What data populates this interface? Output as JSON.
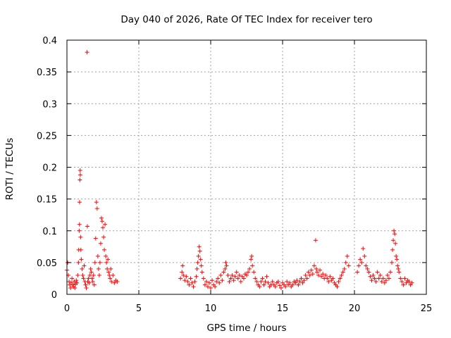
{
  "chart_data": {
    "type": "scatter",
    "title": "Day 040 of 2026, Rate Of TEC Index for receiver tero",
    "xlabel": "GPS time / hours",
    "ylabel": "ROTI / TECUs",
    "xlim": [
      0,
      25
    ],
    "ylim": [
      0,
      0.4
    ],
    "xticks": [
      0,
      5,
      10,
      15,
      20,
      25
    ],
    "xtick_labels": [
      "0",
      "5",
      "10",
      "15",
      "20",
      "25"
    ],
    "yticks": [
      0,
      0.05,
      0.1,
      0.15,
      0.2,
      0.25,
      0.3,
      0.35,
      0.4
    ],
    "ytick_labels": [
      "0",
      "0.05",
      "0.1",
      "0.15",
      "0.2",
      "0.25",
      "0.3",
      "0.35",
      "0.4"
    ],
    "grid": true,
    "marker": "+",
    "color": "#ff0000",
    "series": [
      {
        "name": "ROTI",
        "points": [
          [
            0.0,
            0.038
          ],
          [
            0.05,
            0.05
          ],
          [
            0.1,
            0.03
          ],
          [
            0.15,
            0.02
          ],
          [
            0.2,
            0.015
          ],
          [
            0.25,
            0.01
          ],
          [
            0.3,
            0.018
          ],
          [
            0.35,
            0.025
          ],
          [
            0.4,
            0.015
          ],
          [
            0.45,
            0.012
          ],
          [
            0.5,
            0.02
          ],
          [
            0.55,
            0.01
          ],
          [
            0.6,
            0.016
          ],
          [
            0.65,
            0.022
          ],
          [
            0.7,
            0.018
          ],
          [
            0.75,
            0.03
          ],
          [
            0.8,
            0.05
          ],
          [
            0.82,
            0.07
          ],
          [
            0.85,
            0.1
          ],
          [
            0.87,
            0.11
          ],
          [
            0.88,
            0.145
          ],
          [
            0.9,
            0.18
          ],
          [
            0.92,
            0.195
          ],
          [
            0.93,
            0.188
          ],
          [
            0.95,
            0.09
          ],
          [
            0.97,
            0.07
          ],
          [
            1.0,
            0.055
          ],
          [
            1.05,
            0.04
          ],
          [
            1.1,
            0.03
          ],
          [
            1.15,
            0.025
          ],
          [
            1.2,
            0.045
          ],
          [
            1.25,
            0.02
          ],
          [
            1.3,
            0.015
          ],
          [
            1.35,
            0.01
          ],
          [
            1.4,
            0.381
          ],
          [
            1.42,
            0.107
          ],
          [
            1.45,
            0.02
          ],
          [
            1.5,
            0.025
          ],
          [
            1.55,
            0.018
          ],
          [
            1.6,
            0.03
          ],
          [
            1.65,
            0.04
          ],
          [
            1.7,
            0.035
          ],
          [
            1.75,
            0.025
          ],
          [
            1.8,
            0.02
          ],
          [
            1.85,
            0.03
          ],
          [
            1.9,
            0.015
          ],
          [
            1.95,
            0.05
          ],
          [
            2.0,
            0.088
          ],
          [
            2.05,
            0.145
          ],
          [
            2.1,
            0.135
          ],
          [
            2.15,
            0.06
          ],
          [
            2.2,
            0.04
          ],
          [
            2.25,
            0.03
          ],
          [
            2.3,
            0.05
          ],
          [
            2.35,
            0.08
          ],
          [
            2.4,
            0.12
          ],
          [
            2.45,
            0.115
          ],
          [
            2.5,
            0.105
          ],
          [
            2.55,
            0.09
          ],
          [
            2.6,
            0.07
          ],
          [
            2.65,
            0.11
          ],
          [
            2.7,
            0.06
          ],
          [
            2.75,
            0.05
          ],
          [
            2.8,
            0.04
          ],
          [
            2.85,
            0.055
          ],
          [
            2.9,
            0.035
          ],
          [
            2.95,
            0.03
          ],
          [
            3.0,
            0.025
          ],
          [
            3.05,
            0.04
          ],
          [
            3.1,
            0.02
          ],
          [
            3.2,
            0.03
          ],
          [
            3.3,
            0.018
          ],
          [
            3.4,
            0.022
          ],
          [
            3.5,
            0.02
          ],
          [
            7.9,
            0.025
          ],
          [
            8.0,
            0.035
          ],
          [
            8.05,
            0.045
          ],
          [
            8.1,
            0.03
          ],
          [
            8.2,
            0.022
          ],
          [
            8.3,
            0.028
          ],
          [
            8.4,
            0.02
          ],
          [
            8.5,
            0.015
          ],
          [
            8.6,
            0.025
          ],
          [
            8.7,
            0.018
          ],
          [
            8.8,
            0.012
          ],
          [
            8.9,
            0.02
          ],
          [
            9.0,
            0.028
          ],
          [
            9.05,
            0.04
          ],
          [
            9.1,
            0.05
          ],
          [
            9.15,
            0.06
          ],
          [
            9.2,
            0.075
          ],
          [
            9.25,
            0.068
          ],
          [
            9.3,
            0.055
          ],
          [
            9.35,
            0.045
          ],
          [
            9.4,
            0.035
          ],
          [
            9.5,
            0.025
          ],
          [
            9.6,
            0.015
          ],
          [
            9.7,
            0.02
          ],
          [
            9.8,
            0.012
          ],
          [
            9.9,
            0.018
          ],
          [
            10.0,
            0.01
          ],
          [
            10.1,
            0.022
          ],
          [
            10.2,
            0.015
          ],
          [
            10.3,
            0.012
          ],
          [
            10.4,
            0.02
          ],
          [
            10.5,
            0.025
          ],
          [
            10.6,
            0.018
          ],
          [
            10.7,
            0.03
          ],
          [
            10.8,
            0.022
          ],
          [
            10.9,
            0.035
          ],
          [
            11.0,
            0.04
          ],
          [
            11.05,
            0.05
          ],
          [
            11.1,
            0.045
          ],
          [
            11.2,
            0.03
          ],
          [
            11.3,
            0.02
          ],
          [
            11.4,
            0.025
          ],
          [
            11.5,
            0.03
          ],
          [
            11.6,
            0.022
          ],
          [
            11.7,
            0.028
          ],
          [
            11.8,
            0.035
          ],
          [
            11.9,
            0.025
          ],
          [
            12.0,
            0.03
          ],
          [
            12.1,
            0.02
          ],
          [
            12.2,
            0.028
          ],
          [
            12.3,
            0.025
          ],
          [
            12.4,
            0.032
          ],
          [
            12.5,
            0.03
          ],
          [
            12.6,
            0.035
          ],
          [
            12.7,
            0.04
          ],
          [
            12.8,
            0.055
          ],
          [
            12.85,
            0.06
          ],
          [
            12.9,
            0.045
          ],
          [
            13.0,
            0.035
          ],
          [
            13.1,
            0.025
          ],
          [
            13.2,
            0.02
          ],
          [
            13.3,
            0.015
          ],
          [
            13.4,
            0.012
          ],
          [
            13.5,
            0.02
          ],
          [
            13.6,
            0.025
          ],
          [
            13.7,
            0.015
          ],
          [
            13.8,
            0.02
          ],
          [
            13.9,
            0.028
          ],
          [
            14.0,
            0.018
          ],
          [
            14.1,
            0.012
          ],
          [
            14.2,
            0.015
          ],
          [
            14.3,
            0.02
          ],
          [
            14.4,
            0.015
          ],
          [
            14.5,
            0.012
          ],
          [
            14.6,
            0.018
          ],
          [
            14.7,
            0.02
          ],
          [
            14.8,
            0.014
          ],
          [
            14.9,
            0.01
          ],
          [
            15.0,
            0.018
          ],
          [
            15.1,
            0.015
          ],
          [
            15.2,
            0.012
          ],
          [
            15.3,
            0.02
          ],
          [
            15.4,
            0.015
          ],
          [
            15.5,
            0.018
          ],
          [
            15.6,
            0.012
          ],
          [
            15.7,
            0.015
          ],
          [
            15.8,
            0.02
          ],
          [
            15.9,
            0.018
          ],
          [
            16.0,
            0.022
          ],
          [
            16.1,
            0.015
          ],
          [
            16.2,
            0.02
          ],
          [
            16.3,
            0.025
          ],
          [
            16.4,
            0.018
          ],
          [
            16.5,
            0.022
          ],
          [
            16.6,
            0.03
          ],
          [
            16.7,
            0.025
          ],
          [
            16.8,
            0.035
          ],
          [
            16.9,
            0.03
          ],
          [
            17.0,
            0.038
          ],
          [
            17.1,
            0.032
          ],
          [
            17.2,
            0.045
          ],
          [
            17.3,
            0.085
          ],
          [
            17.35,
            0.04
          ],
          [
            17.4,
            0.035
          ],
          [
            17.5,
            0.03
          ],
          [
            17.6,
            0.038
          ],
          [
            17.7,
            0.028
          ],
          [
            17.8,
            0.032
          ],
          [
            17.9,
            0.025
          ],
          [
            18.0,
            0.03
          ],
          [
            18.1,
            0.025
          ],
          [
            18.2,
            0.02
          ],
          [
            18.3,
            0.028
          ],
          [
            18.4,
            0.022
          ],
          [
            18.5,
            0.025
          ],
          [
            18.6,
            0.018
          ],
          [
            18.7,
            0.015
          ],
          [
            18.8,
            0.012
          ],
          [
            18.9,
            0.02
          ],
          [
            19.0,
            0.025
          ],
          [
            19.1,
            0.03
          ],
          [
            19.2,
            0.035
          ],
          [
            19.3,
            0.04
          ],
          [
            19.4,
            0.05
          ],
          [
            19.5,
            0.06
          ],
          [
            19.6,
            0.045
          ],
          [
            20.2,
            0.035
          ],
          [
            20.3,
            0.045
          ],
          [
            20.4,
            0.055
          ],
          [
            20.5,
            0.05
          ],
          [
            20.6,
            0.072
          ],
          [
            20.7,
            0.06
          ],
          [
            20.8,
            0.045
          ],
          [
            20.9,
            0.04
          ],
          [
            21.0,
            0.035
          ],
          [
            21.1,
            0.028
          ],
          [
            21.2,
            0.022
          ],
          [
            21.3,
            0.03
          ],
          [
            21.4,
            0.025
          ],
          [
            21.5,
            0.02
          ],
          [
            21.6,
            0.035
          ],
          [
            21.7,
            0.025
          ],
          [
            21.8,
            0.03
          ],
          [
            21.9,
            0.02
          ],
          [
            22.0,
            0.025
          ],
          [
            22.1,
            0.018
          ],
          [
            22.2,
            0.022
          ],
          [
            22.3,
            0.03
          ],
          [
            22.4,
            0.025
          ],
          [
            22.5,
            0.035
          ],
          [
            22.6,
            0.05
          ],
          [
            22.65,
            0.07
          ],
          [
            22.7,
            0.085
          ],
          [
            22.75,
            0.1
          ],
          [
            22.8,
            0.095
          ],
          [
            22.85,
            0.08
          ],
          [
            22.9,
            0.06
          ],
          [
            22.95,
            0.055
          ],
          [
            23.0,
            0.045
          ],
          [
            23.05,
            0.04
          ],
          [
            23.1,
            0.035
          ],
          [
            23.2,
            0.025
          ],
          [
            23.3,
            0.02
          ],
          [
            23.4,
            0.015
          ],
          [
            23.5,
            0.025
          ],
          [
            23.6,
            0.018
          ],
          [
            23.7,
            0.022
          ],
          [
            23.8,
            0.02
          ],
          [
            23.9,
            0.015
          ],
          [
            24.0,
            0.018
          ]
        ]
      }
    ]
  }
}
